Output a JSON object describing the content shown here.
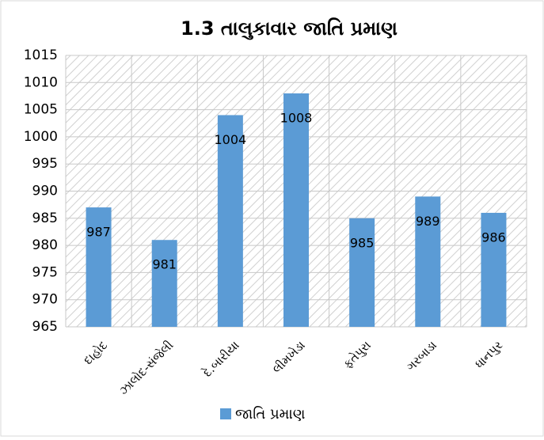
{
  "chart_data": {
    "type": "bar",
    "title": "1.3 તાલુકાવાર જાતિ પ્રમાણ",
    "categories": [
      "દાહોદ",
      "ઝાલોદ-સંજેલી",
      "દે.બારીયા",
      "લીમખેડા",
      "ફતેપુરા",
      "ગરબાડા",
      "ધાનપુર"
    ],
    "series": [
      {
        "name": "જાતિ પ્રમાણ",
        "color": "#5b9bd5",
        "values": [
          987,
          981,
          1004,
          1008,
          985,
          989,
          986
        ]
      }
    ],
    "ylim": [
      965,
      1015
    ],
    "yticks": [
      965,
      970,
      975,
      980,
      985,
      990,
      995,
      1000,
      1005,
      1010,
      1015
    ],
    "grid": true,
    "legend": "bottom"
  }
}
